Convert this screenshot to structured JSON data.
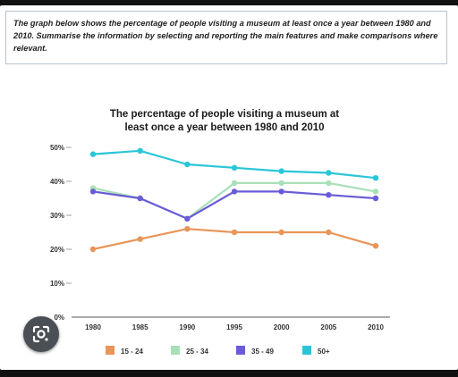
{
  "prompt_text": "The graph below shows the percentage of people visiting a museum at least once a year between 1980 and 2010. Summarise the information by selecting and reporting the main features and make comparisons where relevant.",
  "chart_data": {
    "type": "line",
    "title_lines": [
      "The percentage of people visiting a museum at",
      "least once a year between 1980 and 2010"
    ],
    "x": [
      "1980",
      "1985",
      "1990",
      "1995",
      "2000",
      "2005",
      "2010"
    ],
    "y_ticks": [
      "0%",
      "10%",
      "20%",
      "30%",
      "40%",
      "50%"
    ],
    "ylim": [
      0,
      50
    ],
    "grid": false,
    "legend_position": "bottom",
    "series": [
      {
        "name": "15 - 24",
        "color": "#e8955a",
        "values": [
          20,
          23,
          26,
          25,
          25,
          25,
          21
        ]
      },
      {
        "name": "25 - 34",
        "color": "#a8e0b8",
        "values": [
          38,
          35,
          29,
          39.5,
          39.5,
          39.5,
          37
        ]
      },
      {
        "name": "35 - 49",
        "color": "#6a5cd6",
        "values": [
          37,
          35,
          29,
          37,
          37,
          36,
          35
        ]
      },
      {
        "name": "50+",
        "color": "#29c6d8",
        "values": [
          48,
          49,
          45,
          44,
          43,
          42.5,
          41
        ]
      }
    ]
  },
  "lens_icon": "google-lens-icon"
}
